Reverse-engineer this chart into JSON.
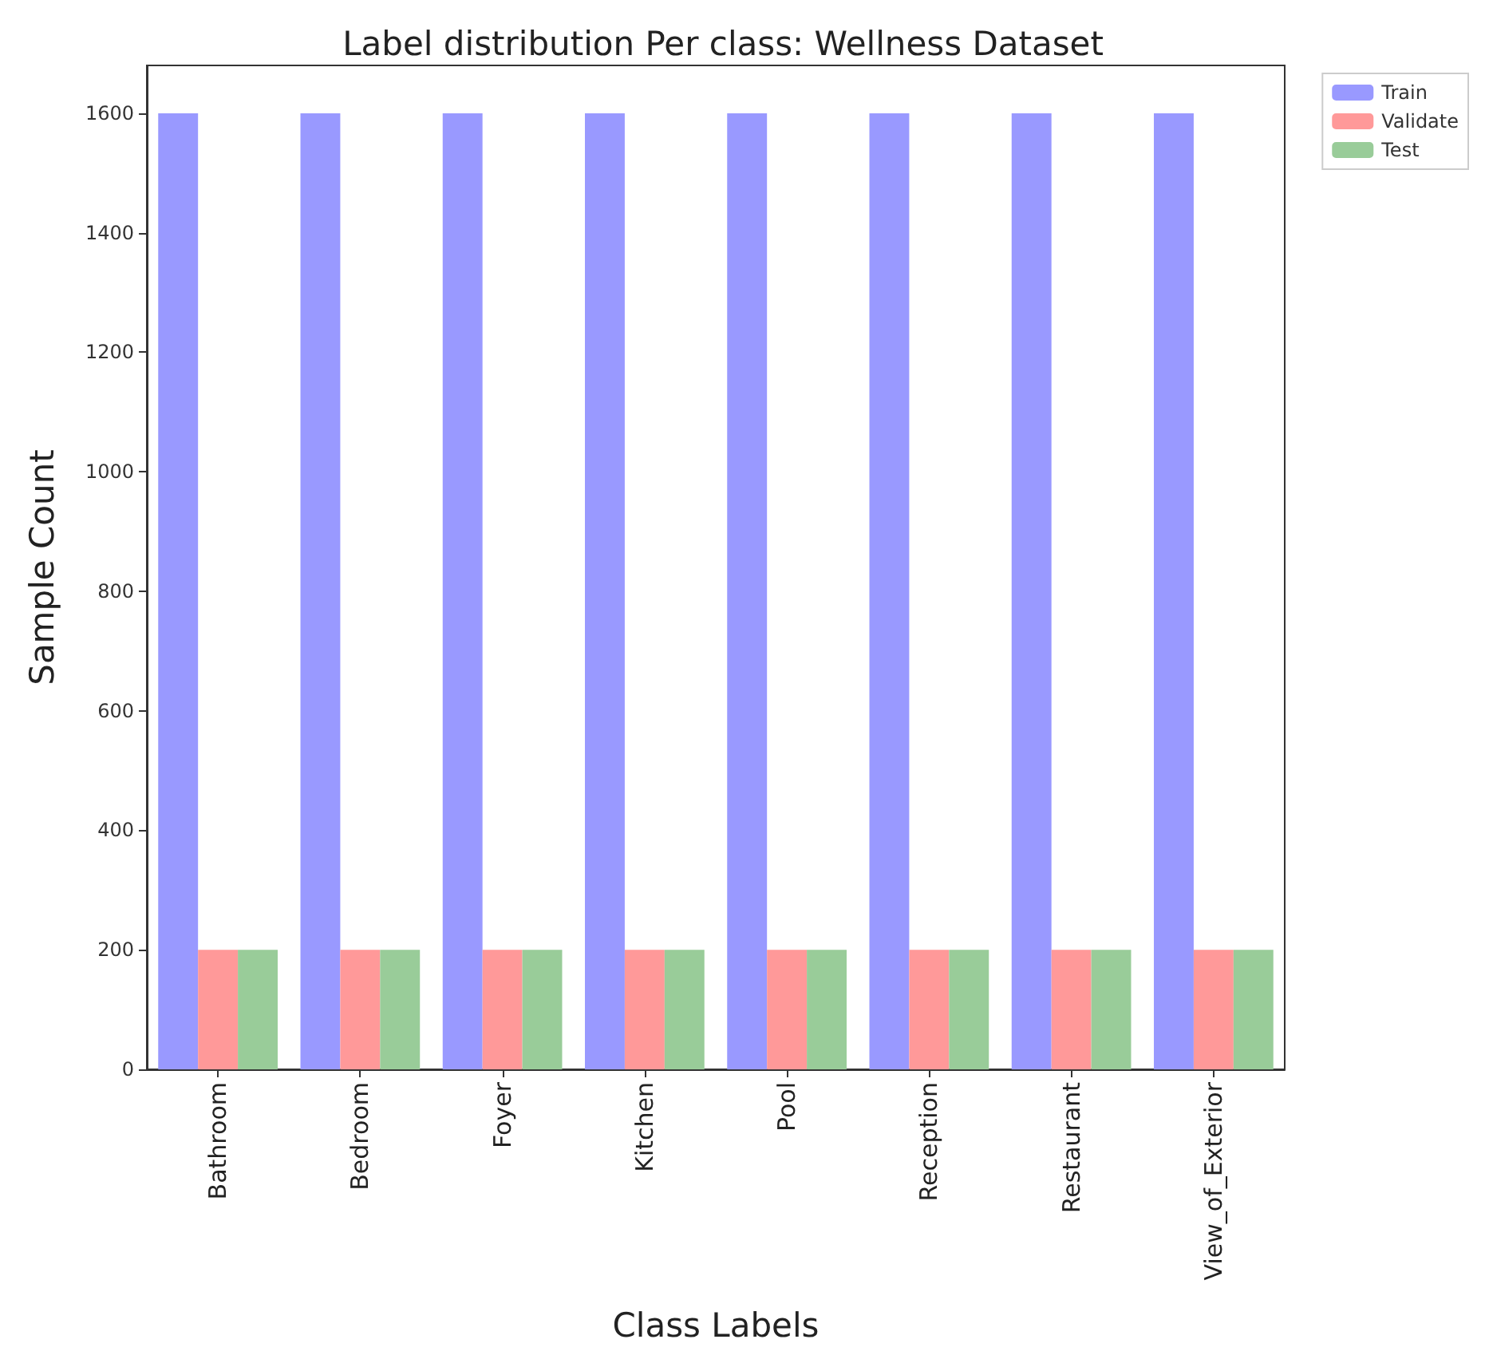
{
  "chart_data": {
    "type": "bar",
    "title": "Label distribution Per class: Wellness Dataset",
    "xlabel": "Class Labels",
    "ylabel": "Sample Count",
    "categories": [
      "Bathroom",
      "Bedroom",
      "Foyer",
      "Kitchen",
      "Pool",
      "Reception",
      "Restaurant",
      "View_of_Exterior"
    ],
    "series": [
      {
        "name": "Train",
        "color": "#9999ff",
        "values": [
          1600,
          1600,
          1600,
          1600,
          1600,
          1600,
          1600,
          1600
        ]
      },
      {
        "name": "Validate",
        "color": "#ff9999",
        "values": [
          200,
          200,
          200,
          200,
          200,
          200,
          200,
          200
        ]
      },
      {
        "name": "Test",
        "color": "#99cc99",
        "values": [
          200,
          200,
          200,
          200,
          200,
          200,
          200,
          200
        ]
      }
    ],
    "ylim": [
      0,
      1680
    ],
    "yticks": [
      0,
      200,
      400,
      600,
      800,
      1000,
      1200,
      1400,
      1600
    ],
    "grid": false,
    "legend": "top right"
  }
}
